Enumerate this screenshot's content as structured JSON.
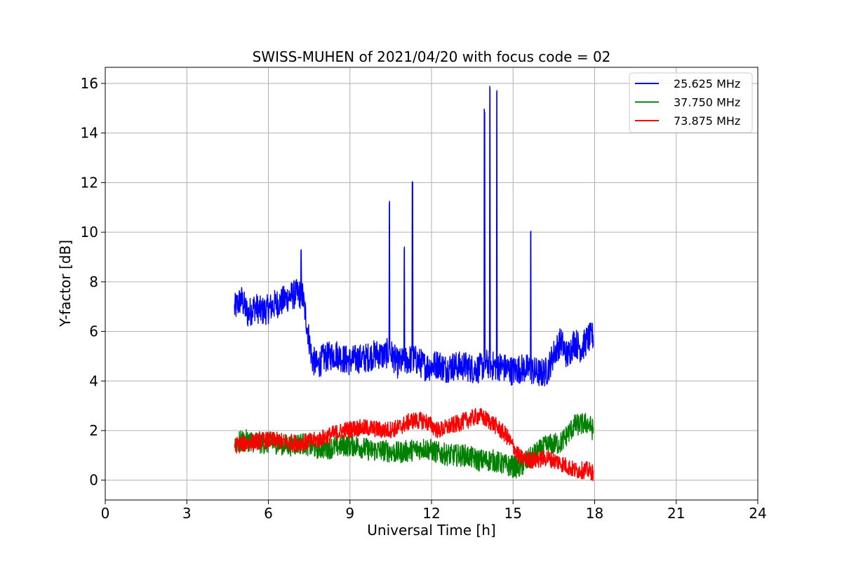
{
  "chart_data": {
    "type": "line",
    "title": "SWISS-MUHEN of 2021/04/20 with focus code = 02",
    "xlabel": "Universal Time [h]",
    "ylabel": "Y-factor [dB]",
    "xlim": [
      0,
      24
    ],
    "ylim": [
      -0.8,
      16.65
    ],
    "xticks": [
      0,
      3,
      6,
      9,
      12,
      15,
      18,
      21,
      24
    ],
    "yticks": [
      0,
      2,
      4,
      6,
      8,
      10,
      12,
      14,
      16
    ],
    "grid": true,
    "legend_position": "top-right",
    "series": [
      {
        "name": "25.625 MHz",
        "color": "#0000ff",
        "points": [
          [
            4.75,
            6.9
          ],
          [
            5.0,
            7.3
          ],
          [
            5.25,
            6.7
          ],
          [
            5.5,
            7.0
          ],
          [
            5.75,
            6.8
          ],
          [
            6.0,
            6.9
          ],
          [
            6.25,
            7.1
          ],
          [
            6.5,
            7.2
          ],
          [
            6.75,
            7.4
          ],
          [
            7.0,
            7.5
          ],
          [
            7.25,
            7.5
          ],
          [
            7.4,
            6.4
          ],
          [
            7.6,
            4.9
          ],
          [
            7.8,
            4.6
          ],
          [
            8.0,
            4.9
          ],
          [
            8.25,
            5.0
          ],
          [
            8.5,
            5.1
          ],
          [
            8.75,
            4.9
          ],
          [
            9.0,
            4.8
          ],
          [
            9.25,
            4.9
          ],
          [
            9.5,
            4.9
          ],
          [
            9.75,
            5.0
          ],
          [
            10.0,
            5.1
          ],
          [
            10.25,
            5.0
          ],
          [
            10.45,
            5.2
          ],
          [
            10.75,
            4.7
          ],
          [
            11.0,
            4.8
          ],
          [
            11.3,
            4.9
          ],
          [
            11.5,
            4.8
          ],
          [
            11.75,
            4.6
          ],
          [
            12.0,
            4.6
          ],
          [
            12.25,
            4.7
          ],
          [
            12.5,
            4.5
          ],
          [
            12.75,
            4.6
          ],
          [
            13.0,
            4.6
          ],
          [
            13.25,
            4.6
          ],
          [
            13.5,
            4.5
          ],
          [
            13.75,
            4.5
          ],
          [
            14.0,
            4.7
          ],
          [
            14.25,
            4.6
          ],
          [
            14.5,
            4.6
          ],
          [
            14.75,
            4.5
          ],
          [
            15.0,
            4.4
          ],
          [
            15.25,
            4.5
          ],
          [
            15.5,
            4.5
          ],
          [
            15.75,
            4.4
          ],
          [
            16.0,
            4.3
          ],
          [
            16.25,
            4.4
          ],
          [
            16.5,
            5.1
          ],
          [
            16.75,
            5.6
          ],
          [
            17.0,
            5.0
          ],
          [
            17.25,
            5.6
          ],
          [
            17.5,
            5.3
          ],
          [
            17.75,
            5.7
          ],
          [
            17.95,
            5.8
          ]
        ],
        "peaks": [
          [
            10.45,
            11.3
          ],
          [
            11.3,
            12.1
          ],
          [
            11.0,
            9.5
          ],
          [
            13.95,
            15.0
          ],
          [
            14.15,
            15.9
          ],
          [
            14.4,
            15.8
          ],
          [
            15.65,
            10.1
          ],
          [
            7.2,
            9.4
          ]
        ]
      },
      {
        "name": "37.750 MHz",
        "color": "#008000",
        "points": [
          [
            4.75,
            1.5
          ],
          [
            5.25,
            1.6
          ],
          [
            5.75,
            1.5
          ],
          [
            6.25,
            1.5
          ],
          [
            6.75,
            1.4
          ],
          [
            7.25,
            1.5
          ],
          [
            7.75,
            1.3
          ],
          [
            8.25,
            1.3
          ],
          [
            8.75,
            1.4
          ],
          [
            9.25,
            1.4
          ],
          [
            9.75,
            1.2
          ],
          [
            10.25,
            1.2
          ],
          [
            10.75,
            1.1
          ],
          [
            11.25,
            1.2
          ],
          [
            11.75,
            1.3
          ],
          [
            12.25,
            1.1
          ],
          [
            12.75,
            1.0
          ],
          [
            13.25,
            1.0
          ],
          [
            13.75,
            0.8
          ],
          [
            14.25,
            0.8
          ],
          [
            14.75,
            0.6
          ],
          [
            15.25,
            0.5
          ],
          [
            15.75,
            1.0
          ],
          [
            16.25,
            1.4
          ],
          [
            16.75,
            1.5
          ],
          [
            17.25,
            2.2
          ],
          [
            17.75,
            2.3
          ],
          [
            17.95,
            2.0
          ]
        ]
      },
      {
        "name": "73.875 MHz",
        "color": "#ff0000",
        "points": [
          [
            4.75,
            1.4
          ],
          [
            5.25,
            1.5
          ],
          [
            5.75,
            1.6
          ],
          [
            6.25,
            1.6
          ],
          [
            6.75,
            1.5
          ],
          [
            7.25,
            1.5
          ],
          [
            7.75,
            1.6
          ],
          [
            8.25,
            1.8
          ],
          [
            8.75,
            2.0
          ],
          [
            9.25,
            2.1
          ],
          [
            9.75,
            2.1
          ],
          [
            10.25,
            2.0
          ],
          [
            10.75,
            2.1
          ],
          [
            11.25,
            2.4
          ],
          [
            11.75,
            2.4
          ],
          [
            12.25,
            2.0
          ],
          [
            12.75,
            2.2
          ],
          [
            13.25,
            2.4
          ],
          [
            13.75,
            2.6
          ],
          [
            14.25,
            2.3
          ],
          [
            14.75,
            1.8
          ],
          [
            15.25,
            0.9
          ],
          [
            15.75,
            0.8
          ],
          [
            16.25,
            0.9
          ],
          [
            16.75,
            0.7
          ],
          [
            17.25,
            0.4
          ],
          [
            17.75,
            0.4
          ],
          [
            17.95,
            0.3
          ]
        ]
      }
    ]
  }
}
